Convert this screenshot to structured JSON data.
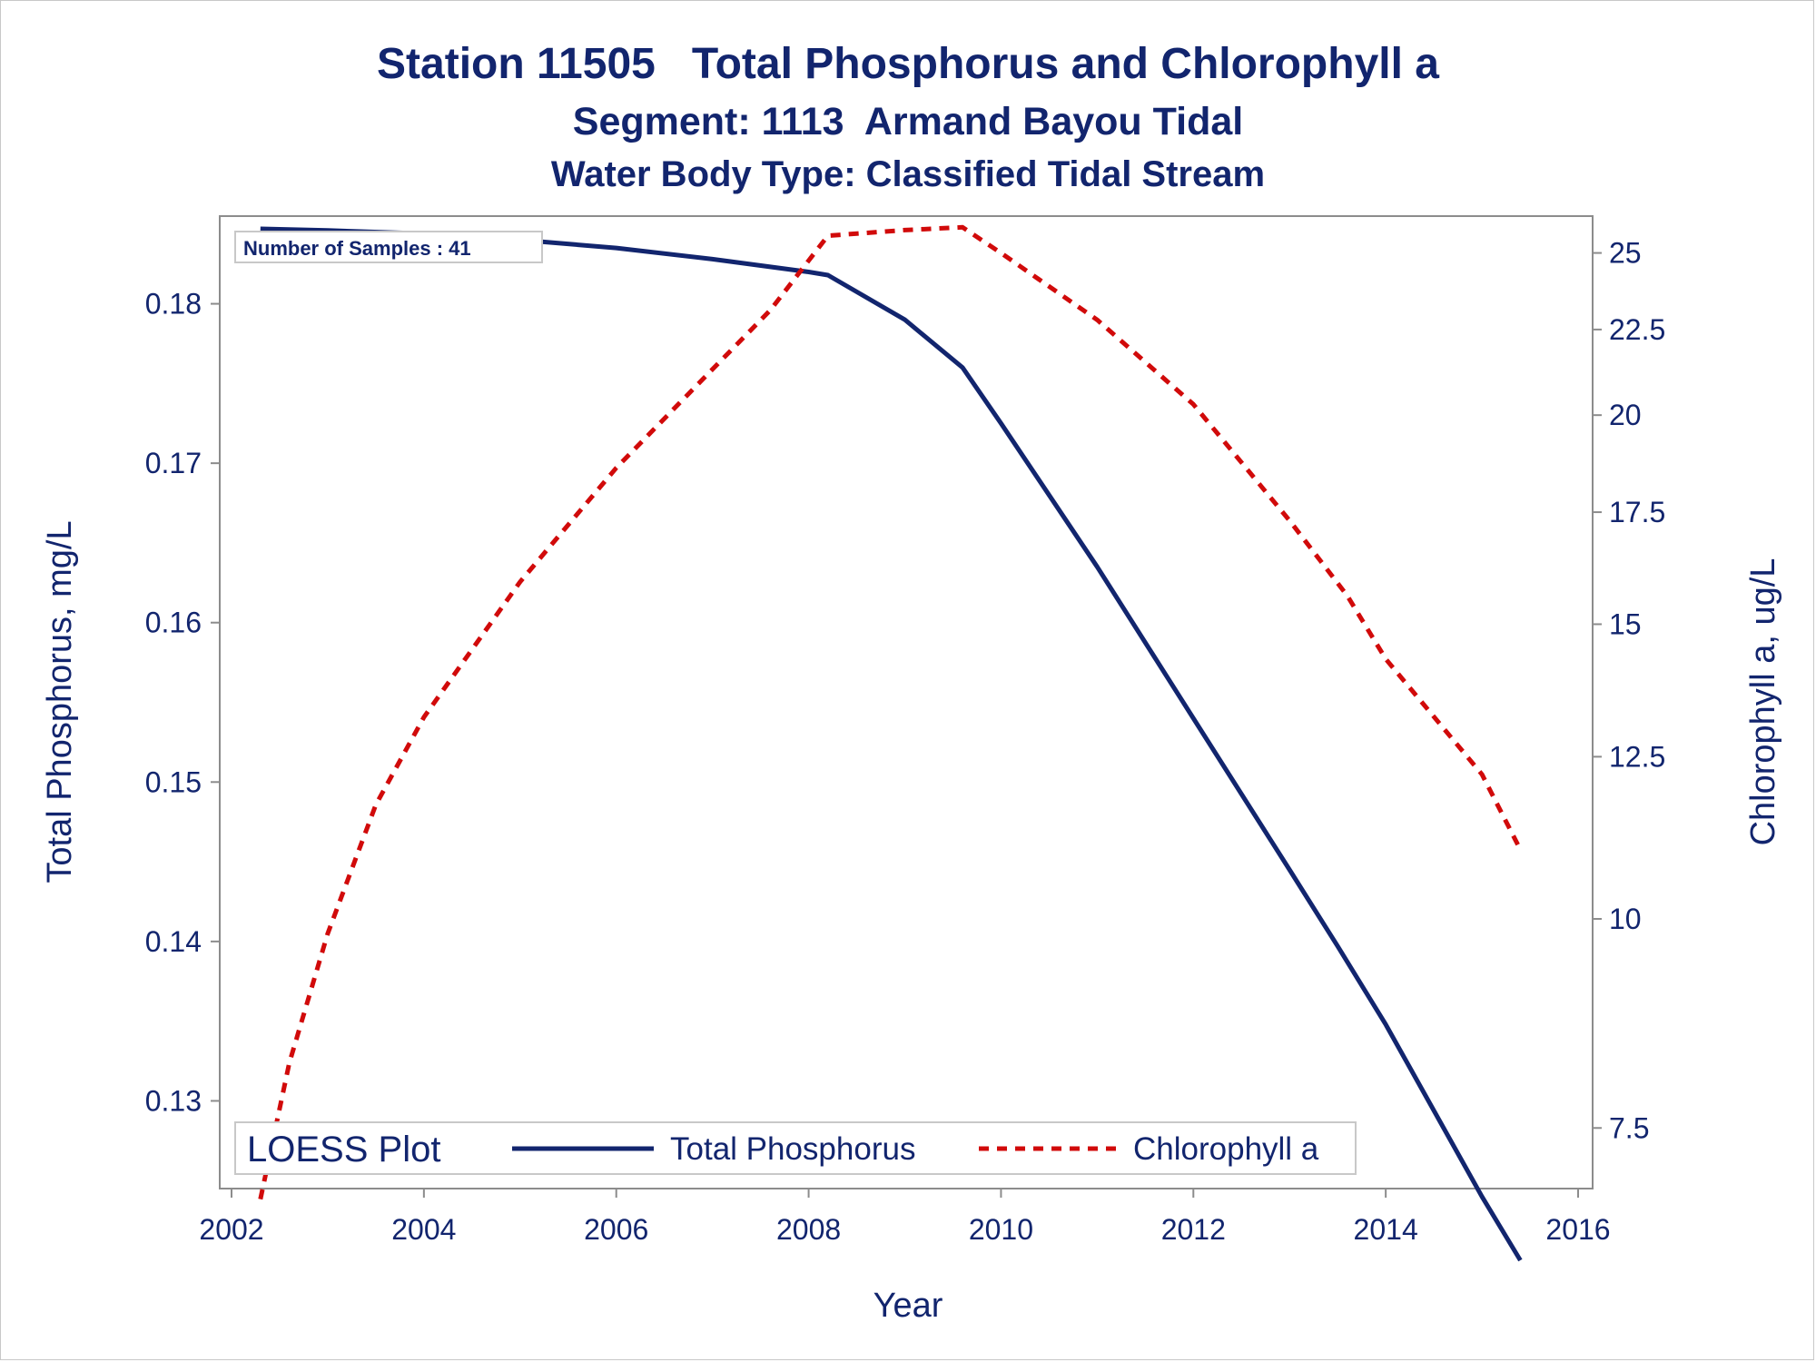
{
  "titles": {
    "line1": "Station 11505   Total Phosphorus and Chlorophyll a",
    "line2": "Segment: 1113  Armand Bayou Tidal",
    "line3": "Water Body Type: Classified Tidal Stream"
  },
  "inset": {
    "text": "Number of Samples : 41"
  },
  "legend": {
    "title": "LOESS Plot",
    "items": [
      "Total Phosphorus",
      "Chlorophyll a"
    ]
  },
  "colors": {
    "phosphorus": "#12256e",
    "chlorophyll": "#d10a0a",
    "axis": "#8c8c8c",
    "text": "#12256e"
  },
  "chart_data": {
    "type": "line",
    "xlabel": "Year",
    "ylabel_left": "Total Phosphorus, mg/L",
    "ylabel_right": "Chlorophyll a, ug/L",
    "xlim": [
      2002,
      2016
    ],
    "ylim_left": [
      0.1245,
      0.1855
    ],
    "ylim_right": [
      6.9,
      26.3
    ],
    "y_right_scale": "log",
    "grid": false,
    "legend_position": "bottom-inside",
    "x_ticks": [
      "2002",
      "2004",
      "2006",
      "2008",
      "2010",
      "2012",
      "2014",
      "2016"
    ],
    "y_left_ticks": [
      "0.13",
      "0.14",
      "0.15",
      "0.16",
      "0.17",
      "0.18"
    ],
    "y_right_ticks": [
      "7.5",
      "10",
      "12.5",
      "15",
      "17.5",
      "20",
      "22.5",
      "25"
    ],
    "series": [
      {
        "name": "Total Phosphorus",
        "axis": "left",
        "style": "solid",
        "x": [
          2002.3,
          2003.0,
          2004.0,
          2005.0,
          2006.0,
          2007.0,
          2008.0,
          2008.2,
          2009.0,
          2009.6,
          2010.0,
          2011.0,
          2012.0,
          2013.0,
          2013.5,
          2014.0,
          2015.0,
          2015.4
        ],
        "y": [
          0.1847,
          0.1846,
          0.1844,
          0.184,
          0.1835,
          0.1828,
          0.182,
          0.1818,
          0.179,
          0.176,
          0.1725,
          0.1635,
          0.154,
          0.1445,
          0.1397,
          0.1348,
          0.124,
          0.12
        ]
      },
      {
        "name": "Chlorophyll a",
        "axis": "right",
        "style": "dashed",
        "x": [
          2002.3,
          2002.6,
          2003.0,
          2003.5,
          2004.0,
          2005.0,
          2006.0,
          2007.0,
          2007.6,
          2008.2,
          2009.0,
          2009.6,
          2010.0,
          2011.0,
          2012.0,
          2013.0,
          2013.6,
          2014.0,
          2015.0,
          2015.4
        ],
        "y": [
          6.8,
          8.2,
          9.8,
          11.7,
          13.2,
          15.9,
          18.6,
          21.3,
          23.1,
          25.6,
          25.8,
          25.9,
          25.0,
          22.8,
          20.3,
          17.3,
          15.6,
          14.3,
          12.2,
          11.0
        ]
      }
    ]
  }
}
